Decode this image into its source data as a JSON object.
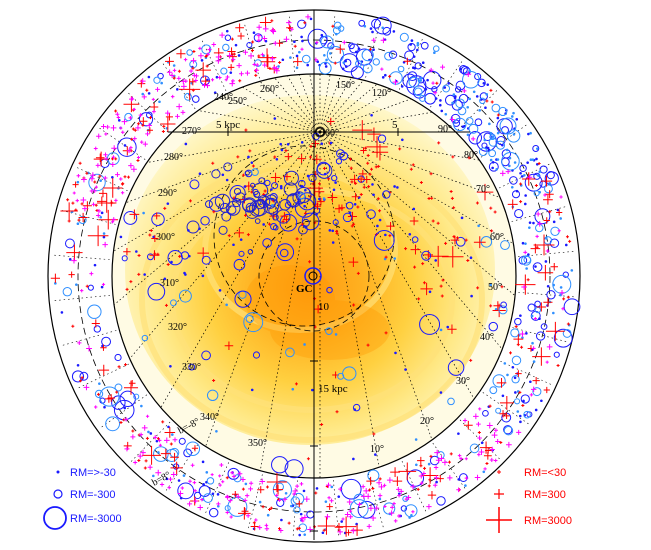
{
  "chart_data": {
    "type": "scatter",
    "projection": "galactic-plane face-on view with outer sky ring",
    "center_label": "GC",
    "distance_labels": [
      {
        "value": "5 kpc",
        "kpc": 5,
        "side": "left"
      },
      {
        "value": "5",
        "kpc": 5,
        "side": "right"
      },
      {
        "value": "10",
        "kpc": 10,
        "side": "below"
      },
      {
        "value": "15 kpc",
        "kpc": 15,
        "side": "below"
      }
    ],
    "longitude_ticks_left": [
      "240°",
      "250°",
      "260°",
      "270°",
      "280°",
      "290°",
      "300°",
      "310°",
      "320°",
      "330°",
      "340°",
      "350°"
    ],
    "longitude_ticks_right": [
      "150°",
      "120°",
      "90°",
      "80°",
      "70°",
      "60°",
      "50°",
      "40°",
      "30°",
      "20°",
      "10°"
    ],
    "latitude_labels": [
      "b=-8°",
      "b=8°"
    ],
    "ring_labels": [
      "360°"
    ],
    "series": [
      {
        "name": "negative RM",
        "marker": "circle",
        "color": "#1a1aff"
      },
      {
        "name": "positive RM",
        "marker": "plus",
        "color": "#ff0000"
      }
    ],
    "legend_negative": [
      {
        "label": "RM=>-30",
        "size": "small"
      },
      {
        "label": "RM=-300",
        "size": "medium"
      },
      {
        "label": "RM=-3000",
        "size": "large"
      }
    ],
    "legend_positive": [
      {
        "label": "RM=<30",
        "size": "small"
      },
      {
        "label": "RM=300",
        "size": "medium"
      },
      {
        "label": "RM=3000",
        "size": "large"
      }
    ],
    "colors": {
      "negative": "#1a1aff",
      "negative_light": "#2f7fff",
      "positive": "#ff0000",
      "magenta": "#ff00ff",
      "disk_bright": "#ff9a10",
      "disk_mid": "#ffd040",
      "disk_pale": "#fff8c8"
    }
  }
}
